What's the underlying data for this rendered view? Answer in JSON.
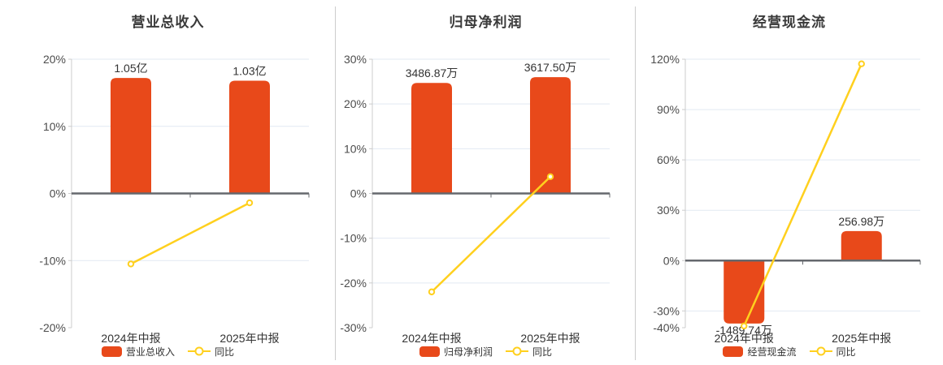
{
  "page": {
    "background": "#ffffff"
  },
  "colors": {
    "bar": "#E8491A",
    "line": "#FFD01E",
    "grid": "#E2E9F2",
    "zero_axis": "#65686D",
    "axis_line": "#CCCCCC",
    "tick_text": "#4D4D4D",
    "label_text": "#333333",
    "title_text": "#3A3A3A",
    "divider": "#CCCCCC"
  },
  "chart_data": [
    {
      "type": "bar",
      "title": "营业总收入",
      "categories": [
        "2024年中报",
        "2025年中报"
      ],
      "y_axis": {
        "min": -20,
        "max": 20,
        "ticks": [
          20,
          10,
          0,
          -10,
          -20
        ],
        "tick_suffix": "%"
      },
      "bar_series": {
        "name": "营业总收入",
        "values": [
          1.05,
          1.03
        ],
        "unit": "亿",
        "value_labels": [
          "1.05亿",
          "1.03亿"
        ],
        "bar_height_on_pct_axis": [
          17.2,
          16.8
        ]
      },
      "line_series": {
        "name": "同比",
        "values_pct": [
          -10.5,
          -1.4
        ]
      },
      "legend_position": "bottom",
      "grid": true
    },
    {
      "type": "bar",
      "title": "归母净利润",
      "categories": [
        "2024年中报",
        "2025年中报"
      ],
      "y_axis": {
        "min": -30,
        "max": 30,
        "ticks": [
          30,
          20,
          10,
          0,
          -10,
          -20,
          -30
        ],
        "tick_suffix": "%"
      },
      "bar_series": {
        "name": "归母净利润",
        "values": [
          3486.87,
          3617.5
        ],
        "unit": "万",
        "value_labels": [
          "3486.87万",
          "3617.50万"
        ],
        "bar_height_on_pct_axis": [
          24.7,
          26.0
        ]
      },
      "line_series": {
        "name": "同比",
        "values_pct": [
          -22.0,
          3.75
        ]
      },
      "legend_position": "bottom",
      "grid": true
    },
    {
      "type": "bar",
      "title": "经营现金流",
      "categories": [
        "2024年中报",
        "2025年中报"
      ],
      "y_axis": {
        "min": -40,
        "max": 120,
        "ticks": [
          120,
          90,
          60,
          30,
          0,
          -30,
          -40
        ],
        "tick_suffix": "%"
      },
      "bar_series": {
        "name": "经营现金流",
        "values": [
          -1489.74,
          256.98
        ],
        "unit": "万",
        "value_labels": [
          "-1489.74万",
          "256.98万"
        ],
        "bar_height_on_pct_axis": [
          -37.5,
          17.6
        ]
      },
      "line_series": {
        "name": "同比",
        "values_pct": [
          -39.0,
          117.25
        ]
      },
      "legend_position": "bottom",
      "grid": true
    }
  ]
}
